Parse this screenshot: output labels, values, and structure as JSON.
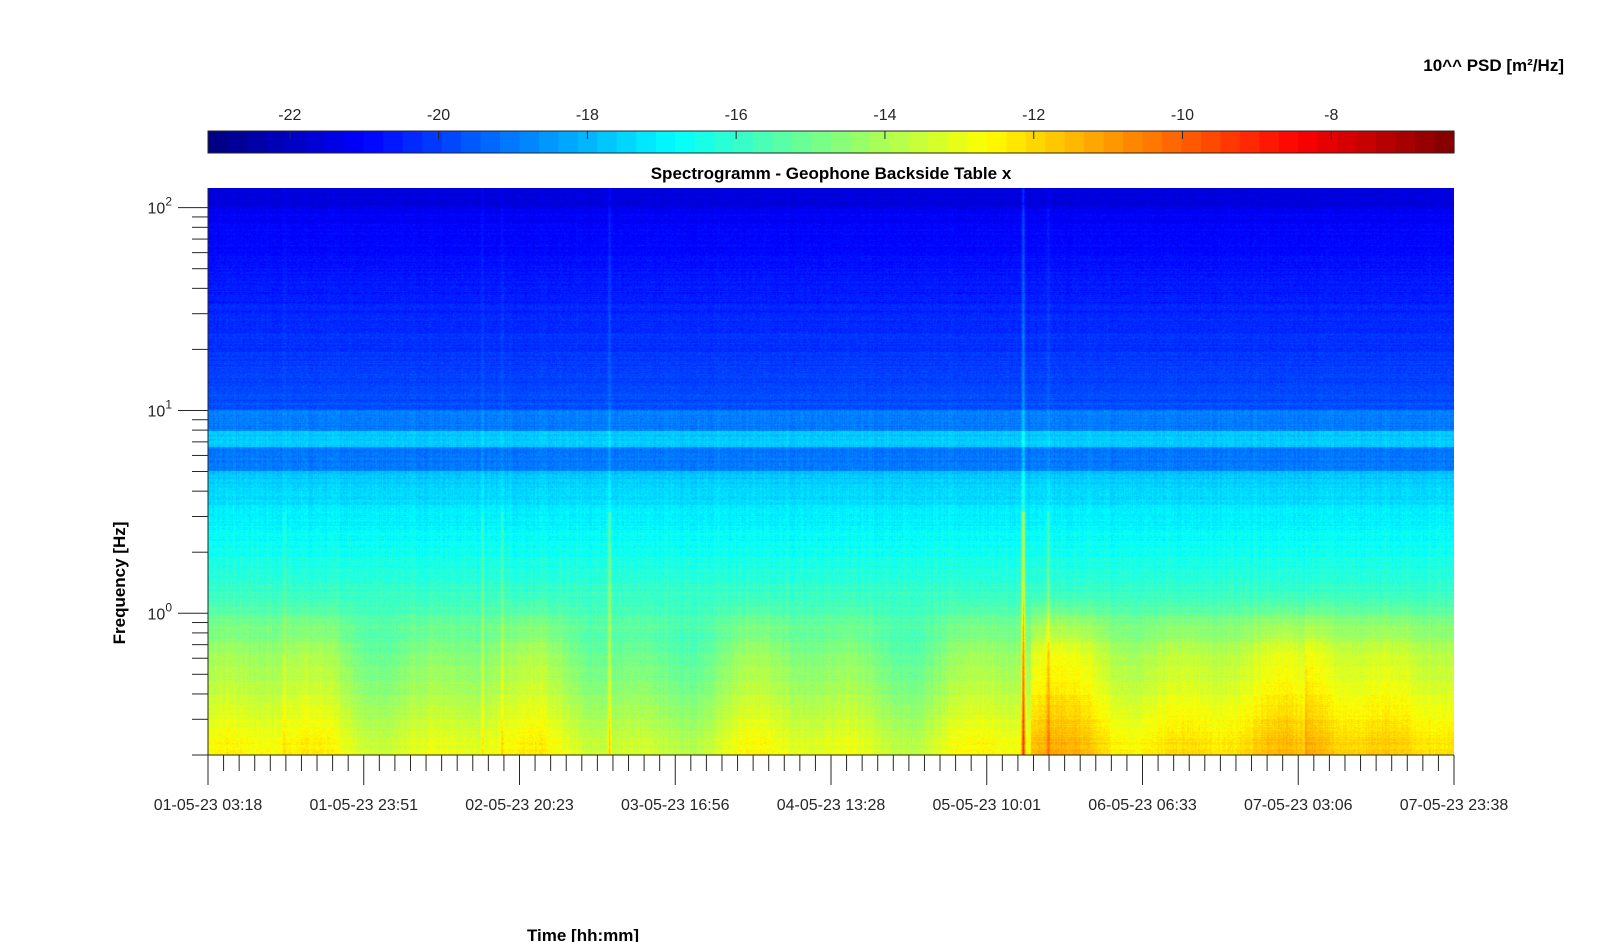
{
  "chart_data": {
    "type": "heatmap",
    "title": "Spectrogramm - Geophone Backside Table x",
    "xlabel": "Time [hh:mm]",
    "ylabel": "Frequency [Hz]",
    "y_scale": "log",
    "ylim": [
      0.2,
      125
    ],
    "x_tick_labels": [
      "01-05-23 03:18",
      "01-05-23 23:51",
      "02-05-23 20:23",
      "03-05-23 16:56",
      "04-05-23 13:28",
      "05-05-23 10:01",
      "06-05-23 06:33",
      "07-05-23 03:06",
      "07-05-23 23:38"
    ],
    "y_ticks": [
      {
        "mantissa": "10",
        "exponent": "0",
        "value": 1
      },
      {
        "mantissa": "10",
        "exponent": "1",
        "value": 10
      },
      {
        "mantissa": "10",
        "exponent": "2",
        "value": 100
      }
    ],
    "colorbar": {
      "label": "10^^ PSD [m²/Hz]",
      "range": [
        -23.1,
        -6.35
      ],
      "ticks": [
        "-22",
        "-20",
        "-18",
        "-16",
        "-14",
        "-12",
        "-10",
        "-8"
      ],
      "tick_values": [
        -22,
        -20,
        -18,
        -16,
        -14,
        -12,
        -10,
        -8
      ],
      "colormap": "jet",
      "location": "top"
    }
  }
}
